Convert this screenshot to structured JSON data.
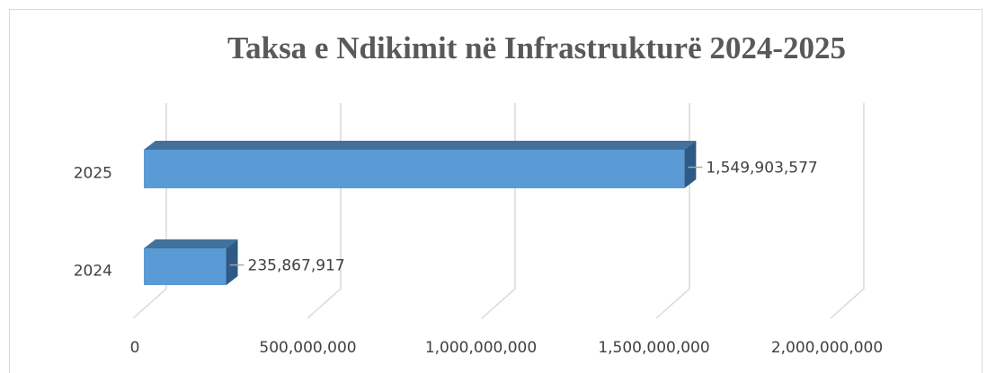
{
  "chart_data": {
    "type": "bar3d_horizontal",
    "title": "Taksa e Ndikimit në Infrastrukturë 2024-2025",
    "categories": [
      "2024",
      "2025"
    ],
    "values": [
      235867917,
      1549903577
    ],
    "value_labels": [
      "235,867,917",
      "1,549,903,577"
    ],
    "color": "#5b9bd5",
    "xlim": [
      0,
      2000000000
    ],
    "xticks": [
      0,
      {
        "value": 500000000,
        "label": "500,000,000"
      },
      {
        "value": 1000000000,
        "label": "1,000,000,000"
      },
      {
        "value": 1500000000,
        "label": "1,500,000,000"
      },
      {
        "value": 2000000000,
        "label": "2,000,000,000"
      }
    ],
    "grid": true
  }
}
